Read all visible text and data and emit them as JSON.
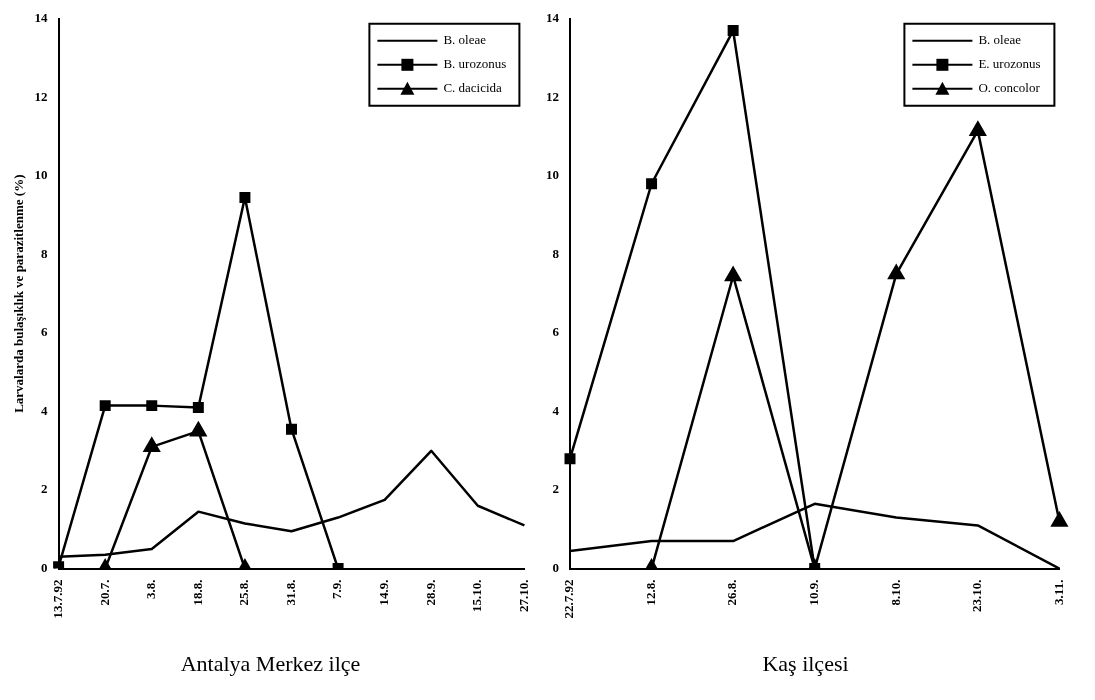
{
  "chart_data": [
    {
      "type": "line",
      "title": "Antalya Merkez ilçe",
      "ylabel": "Larvalarda bulaşıklık ve parazitlenme (%)",
      "categories": [
        "13.7.92",
        "20.7.",
        "3.8.",
        "18.8.",
        "25.8.",
        "31.8.",
        "7.9.",
        "14.9.",
        "28.9.",
        "15.10.",
        "27.10."
      ],
      "series": [
        {
          "name": "B. oleae",
          "color": "#000000",
          "marker": "none",
          "values": [
            0.3,
            0.35,
            0.5,
            1.45,
            1.15,
            0.95,
            1.3,
            1.75,
            3.0,
            1.6,
            1.1
          ]
        },
        {
          "name": "B. urozonus",
          "color": "#000000",
          "marker": "square",
          "values": [
            0.05,
            4.15,
            4.15,
            4.1,
            9.45,
            3.55,
            0,
            null,
            null,
            null,
            null
          ]
        },
        {
          "name": "C. dacicida",
          "color": "#000000",
          "marker": "triangle",
          "values": [
            null,
            0,
            3.1,
            3.5,
            0,
            null,
            null,
            null,
            null,
            null,
            null
          ]
        }
      ],
      "ylim": [
        0,
        14
      ],
      "yticks": [
        0,
        2,
        4,
        6,
        8,
        10,
        12,
        14
      ],
      "grid": false,
      "legend": "top right"
    },
    {
      "type": "line",
      "title": "Kaş ilçesi",
      "categories": [
        "22.7.92",
        "12.8.",
        "26.8.",
        "10.9.",
        "8.10.",
        "23.10.",
        "3.11."
      ],
      "series": [
        {
          "name": "B. oleae",
          "color": "#000000",
          "marker": "none",
          "values": [
            0.45,
            0.7,
            0.7,
            1.65,
            1.3,
            1.1,
            0
          ]
        },
        {
          "name": "E. urozonus",
          "color": "#000000",
          "marker": "square",
          "values": [
            2.8,
            9.8,
            13.7,
            0,
            null,
            null,
            null
          ]
        },
        {
          "name": "O. concolor",
          "color": "#000000",
          "marker": "triangle",
          "values": [
            null,
            0,
            7.45,
            0,
            7.5,
            11.15,
            1.2
          ]
        }
      ],
      "ylim": [
        0,
        14
      ],
      "yticks": [
        0,
        2,
        4,
        6,
        8,
        10,
        12,
        14
      ],
      "grid": false,
      "legend": "top right"
    }
  ]
}
